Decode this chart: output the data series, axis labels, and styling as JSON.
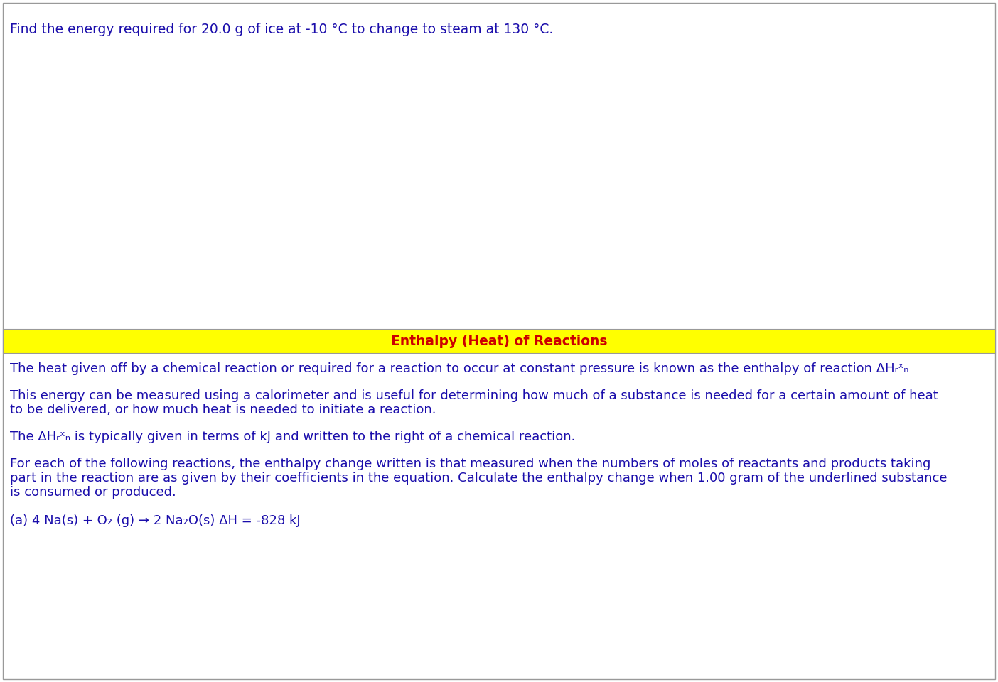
{
  "bg_color": "#FFFFFF",
  "border_color": "#999999",
  "text_color": "#1a0dab",
  "header_bg": "#FFFF00",
  "header_text_color": "#cc0000",
  "header_text": "Enthalpy (Heat) of Reactions",
  "top_question": "Find the energy required for 20.0 g of ice at -10 °C to change to steam at 130 °C.",
  "para1": "The heat given off by a chemical reaction or required for a reaction to occur at constant pressure is known as the enthalpy of reaction ΔHᵣˣₙ",
  "para2_line1": "This energy can be measured using a calorimeter and is useful for determining how much of a substance is needed for a certain amount of heat",
  "para2_line2": "to be delivered, or how much heat is needed to initiate a reaction.",
  "para3": "The ΔHᵣˣₙ is typically given in terms of kJ and written to the right of a chemical reaction.",
  "para4_line1": "For each of the following reactions, the enthalpy change written is that measured when the numbers of moles of reactants and products taking",
  "para4_line2": "part in the reaction are as given by their coefficients in the equation. Calculate the enthalpy change when 1.00 gram of the underlined substance",
  "para4_line3": "is consumed or produced.",
  "para5": "(a) 4 Na(s) + O₂ (g) → 2 Na₂O(s) ΔH = -828 kJ",
  "font_size_top": 13.5,
  "font_size_body": 13.0,
  "font_size_header": 13.5
}
